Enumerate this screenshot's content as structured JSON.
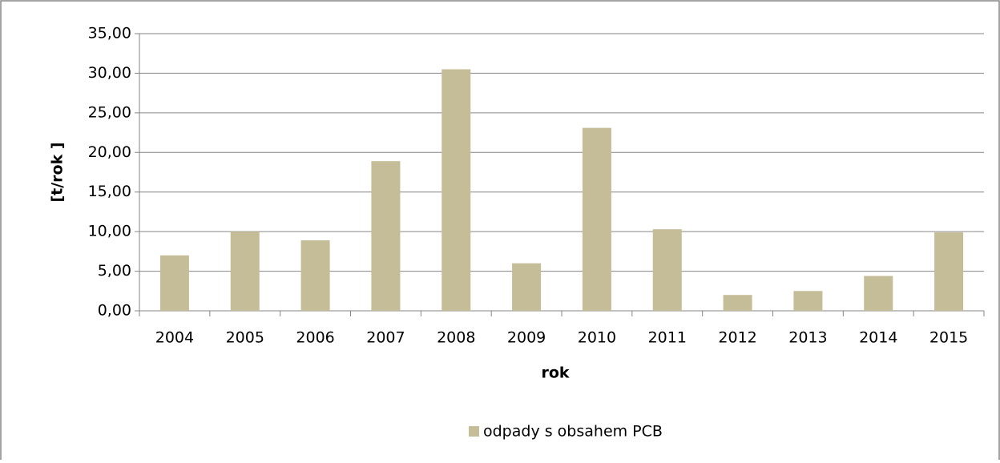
{
  "chart_data": {
    "type": "bar",
    "categories": [
      "2004",
      "2005",
      "2006",
      "2007",
      "2008",
      "2009",
      "2010",
      "2011",
      "2012",
      "2013",
      "2014",
      "2015"
    ],
    "series": [
      {
        "name": "odpady s obsahem PCB",
        "color": "#c4bd97",
        "values": [
          7.0,
          10.0,
          8.9,
          18.9,
          30.5,
          6.0,
          23.1,
          10.3,
          2.0,
          2.5,
          4.4,
          9.9
        ]
      }
    ],
    "ylim": [
      0,
      35
    ],
    "yticks": [
      {
        "value": 0,
        "label": "0,00"
      },
      {
        "value": 5,
        "label": "5,00"
      },
      {
        "value": 10,
        "label": "10,00"
      },
      {
        "value": 15,
        "label": "15,00"
      },
      {
        "value": 20,
        "label": "20,00"
      },
      {
        "value": 25,
        "label": "25,00"
      },
      {
        "value": 30,
        "label": "30,00"
      },
      {
        "value": 35,
        "label": "35,00"
      }
    ],
    "x_label": "rok",
    "y_label": "[t/rok ]",
    "grid": true,
    "legend": "bottom"
  }
}
